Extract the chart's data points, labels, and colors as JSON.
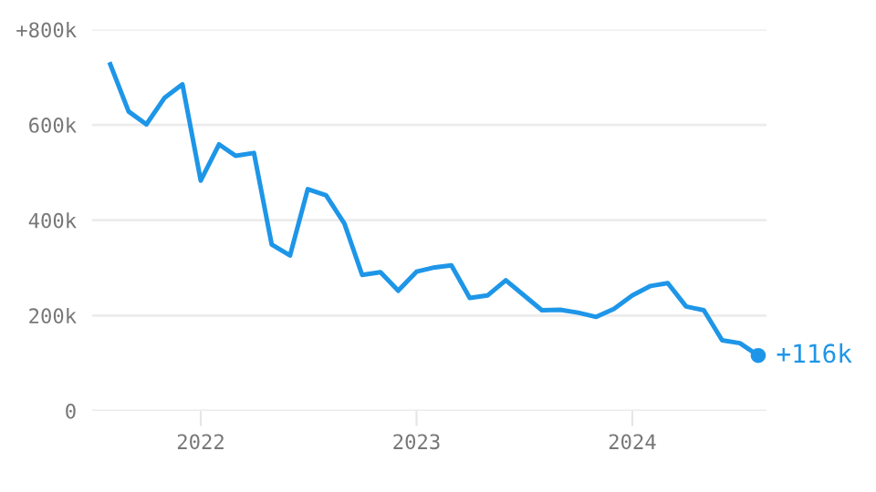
{
  "chart_data": {
    "type": "line",
    "x": [
      "2021-08",
      "2021-09",
      "2021-10",
      "2021-11",
      "2021-12",
      "2022-01",
      "2022-02",
      "2022-03",
      "2022-04",
      "2022-05",
      "2022-06",
      "2022-07",
      "2022-08",
      "2022-09",
      "2022-10",
      "2022-11",
      "2022-12",
      "2023-01",
      "2023-02",
      "2023-03",
      "2023-04",
      "2023-05",
      "2023-06",
      "2023-07",
      "2023-08",
      "2023-09",
      "2023-10",
      "2023-11",
      "2023-12",
      "2024-01",
      "2024-02",
      "2024-03",
      "2024-04",
      "2024-05",
      "2024-06",
      "2024-07",
      "2024-08"
    ],
    "series": [
      {
        "color": "#1e96e8",
        "values": [
          727000,
          628000,
          601000,
          657000,
          685000,
          483000,
          559000,
          535000,
          541000,
          349000,
          326000,
          465000,
          452000,
          393000,
          285000,
          291000,
          252000,
          292000,
          301000,
          305000,
          237000,
          242000,
          274000,
          243000,
          211000,
          212000,
          206000,
          197000,
          214000,
          242000,
          262000,
          268000,
          219000,
          211000,
          148000,
          142000,
          116000
        ]
      }
    ],
    "ylim": [
      0,
      800000
    ],
    "yticks": [
      {
        "value": 0,
        "label": "0"
      },
      {
        "value": 200000,
        "label": "200k"
      },
      {
        "value": 400000,
        "label": "400k"
      },
      {
        "value": 600000,
        "label": "600k"
      },
      {
        "value": 800000,
        "label": "+800k"
      }
    ],
    "xlim": [
      "2021-07-01",
      "2024-08-15"
    ],
    "xticks": [
      {
        "value": "2022-01-01",
        "label": "2022"
      },
      {
        "value": "2023-01-01",
        "label": "2023"
      },
      {
        "value": "2024-01-01",
        "label": "2024"
      }
    ],
    "grid": "y",
    "marker": "none",
    "line_style": "solid",
    "annotations": [
      {
        "text": "+116k",
        "x": "2024-08",
        "y": 116000
      }
    ]
  }
}
